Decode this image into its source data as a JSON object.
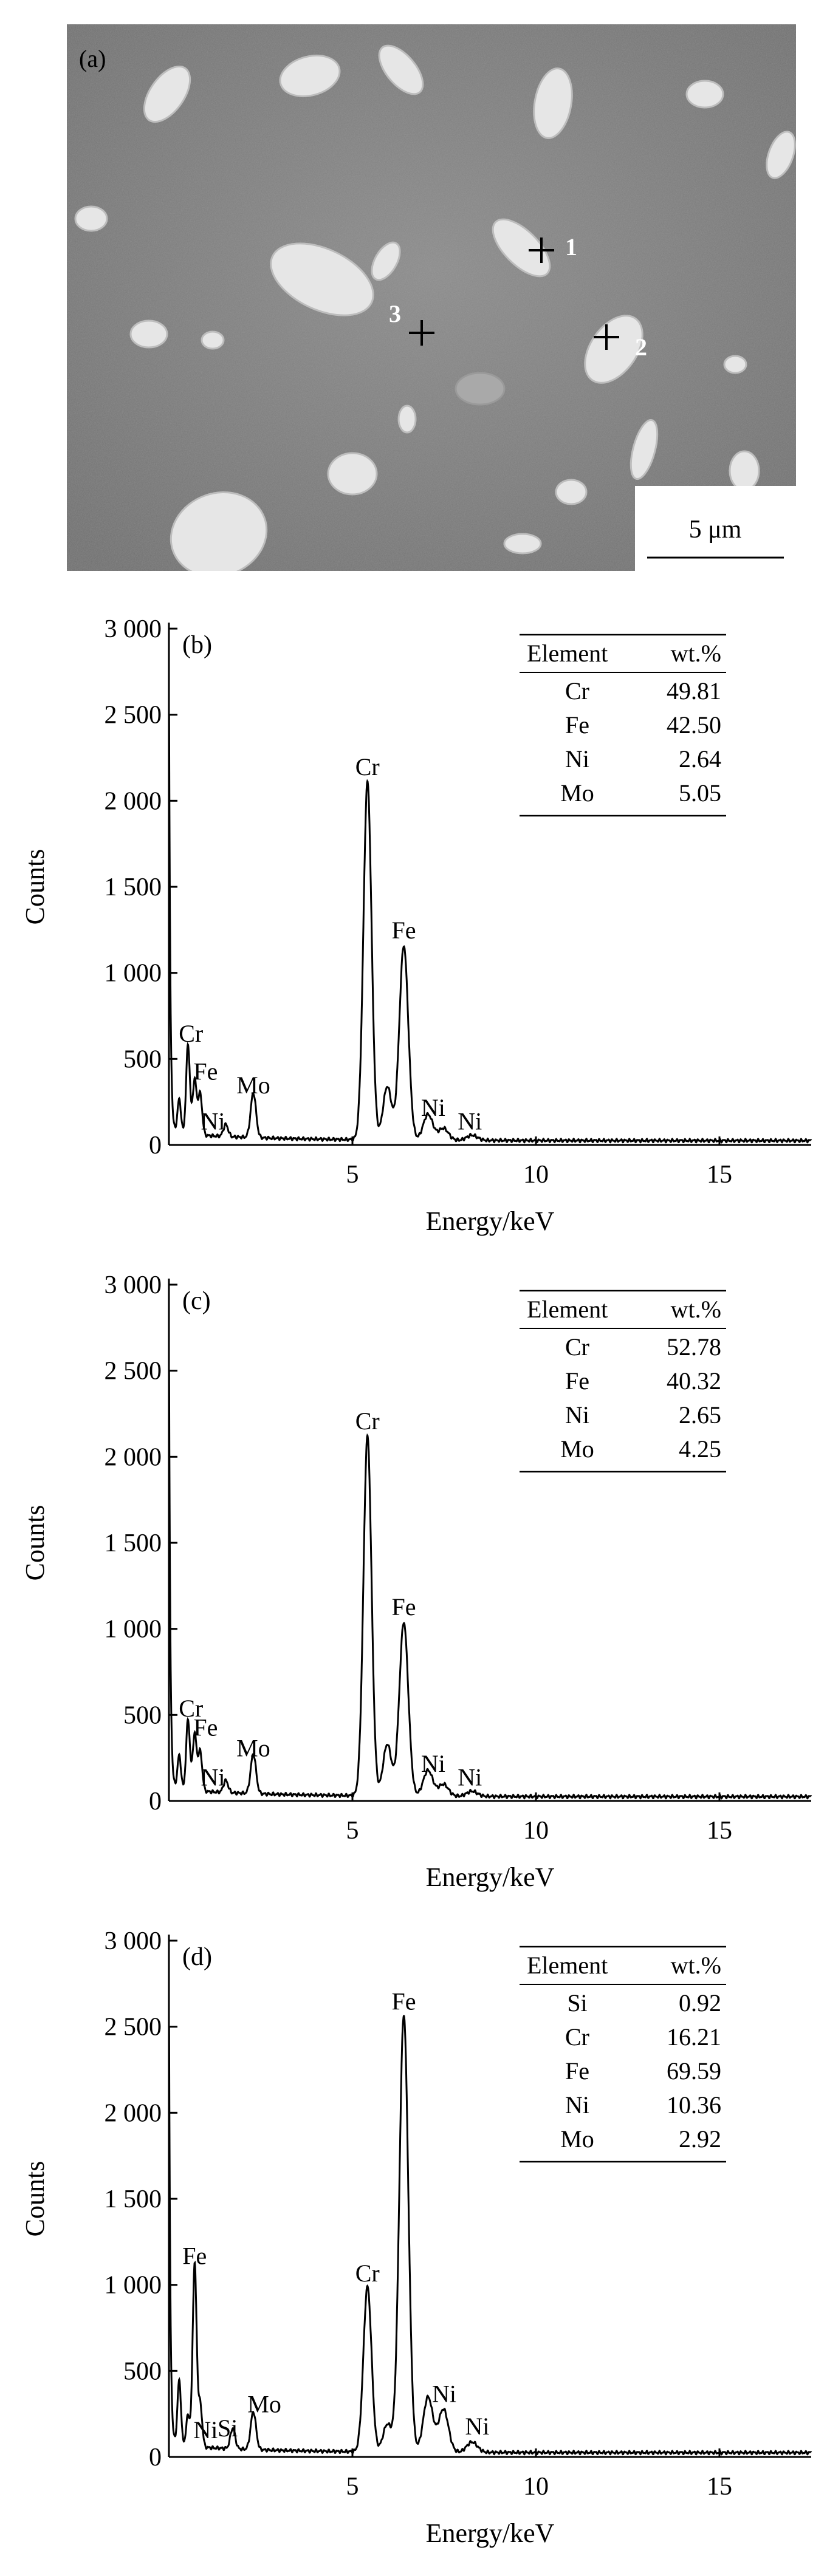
{
  "sem_panel": {
    "label": "(a)",
    "scale_bar": "5 μm",
    "points": [
      "1",
      "2",
      "3"
    ]
  },
  "chart_data": [
    {
      "type": "line",
      "panel": "(b)",
      "xlabel": "Energy/keV",
      "ylabel": "Counts",
      "xlim": [
        0,
        17.5
      ],
      "ylim": [
        0,
        3000
      ],
      "xticks": [
        5,
        10,
        15
      ],
      "yticks": [
        0,
        500,
        1000,
        1500,
        2000,
        2500,
        3000
      ],
      "ytick_labels": [
        "0",
        "500",
        "1 000",
        "1 500",
        "2 000",
        "2 500",
        "3 000"
      ],
      "series": [
        {
          "peaks": [
            [
              0.28,
              200
            ],
            [
              0.52,
              520
            ],
            [
              0.7,
              320
            ],
            [
              0.85,
              240
            ],
            [
              1.55,
              70
            ],
            [
              2.3,
              260
            ],
            [
              5.41,
              2080
            ],
            [
              5.95,
              310
            ],
            [
              6.4,
              1130
            ],
            [
              7.06,
              150
            ],
            [
              7.48,
              70
            ],
            [
              8.26,
              30
            ]
          ]
        }
      ],
      "annotations": [
        {
          "text": "Cr",
          "x": 0.6,
          "y": 600
        },
        {
          "text": "Fe",
          "x": 1.0,
          "y": 380
        },
        {
          "text": "Ni",
          "x": 1.2,
          "y": 90
        },
        {
          "text": "Mo",
          "x": 2.3,
          "y": 300
        },
        {
          "text": "Cr",
          "x": 5.41,
          "y": 2150
        },
        {
          "text": "Fe",
          "x": 6.4,
          "y": 1200
        },
        {
          "text": "Ni",
          "x": 7.2,
          "y": 170
        },
        {
          "text": "Ni",
          "x": 8.2,
          "y": 90
        }
      ],
      "table": {
        "headers": [
          "Element",
          "wt.%"
        ],
        "rows": [
          [
            "Cr",
            "49.81"
          ],
          [
            "Fe",
            "42.50"
          ],
          [
            "Ni",
            "2.64"
          ],
          [
            "Mo",
            "5.05"
          ]
        ]
      }
    },
    {
      "type": "line",
      "panel": "(c)",
      "xlabel": "Energy/keV",
      "ylabel": "Counts",
      "xlim": [
        0,
        17.5
      ],
      "ylim": [
        0,
        3000
      ],
      "xticks": [
        5,
        10,
        15
      ],
      "yticks": [
        0,
        500,
        1000,
        1500,
        2000,
        2500,
        3000
      ],
      "ytick_labels": [
        "0",
        "500",
        "1 000",
        "1 500",
        "2 000",
        "2 500",
        "3 000"
      ],
      "series": [
        {
          "peaks": [
            [
              0.28,
              200
            ],
            [
              0.52,
              410
            ],
            [
              0.7,
              330
            ],
            [
              0.85,
              230
            ],
            [
              1.55,
              70
            ],
            [
              2.3,
              230
            ],
            [
              5.41,
              2090
            ],
            [
              5.95,
              300
            ],
            [
              6.4,
              1010
            ],
            [
              7.06,
              150
            ],
            [
              7.48,
              70
            ],
            [
              8.26,
              30
            ]
          ]
        }
      ],
      "annotations": [
        {
          "text": "Cr",
          "x": 0.6,
          "y": 490
        },
        {
          "text": "Fe",
          "x": 1.0,
          "y": 380
        },
        {
          "text": "Ni",
          "x": 1.2,
          "y": 90
        },
        {
          "text": "Mo",
          "x": 2.3,
          "y": 260
        },
        {
          "text": "Cr",
          "x": 5.41,
          "y": 2160
        },
        {
          "text": "Fe",
          "x": 6.4,
          "y": 1080
        },
        {
          "text": "Ni",
          "x": 7.2,
          "y": 170
        },
        {
          "text": "Ni",
          "x": 8.2,
          "y": 90
        }
      ],
      "table": {
        "headers": [
          "Element",
          "wt.%"
        ],
        "rows": [
          [
            "Cr",
            "52.78"
          ],
          [
            "Fe",
            "40.32"
          ],
          [
            "Ni",
            "2.65"
          ],
          [
            "Mo",
            "4.25"
          ]
        ]
      }
    },
    {
      "type": "line",
      "panel": "(d)",
      "xlabel": "Energy/keV",
      "ylabel": "Counts",
      "xlim": [
        0,
        17.5
      ],
      "ylim": [
        0,
        3000
      ],
      "xticks": [
        5,
        10,
        15
      ],
      "yticks": [
        0,
        500,
        1000,
        1500,
        2000,
        2500,
        3000
      ],
      "ytick_labels": [
        "0",
        "500",
        "1 000",
        "1 500",
        "2 000",
        "2 500",
        "3 000"
      ],
      "series": [
        {
          "peaks": [
            [
              0.28,
              380
            ],
            [
              0.52,
              180
            ],
            [
              0.7,
              1060
            ],
            [
              0.85,
              250
            ],
            [
              1.74,
              120
            ],
            [
              2.3,
              220
            ],
            [
              5.41,
              960
            ],
            [
              5.95,
              160
            ],
            [
              6.4,
              2540
            ],
            [
              7.06,
              320
            ],
            [
              7.48,
              250
            ],
            [
              8.26,
              60
            ]
          ]
        }
      ],
      "annotations": [
        {
          "text": "Fe",
          "x": 0.7,
          "y": 1120
        },
        {
          "text": "Ni",
          "x": 1.0,
          "y": 110
        },
        {
          "text": "Si",
          "x": 1.6,
          "y": 120
        },
        {
          "text": "Mo",
          "x": 2.6,
          "y": 260
        },
        {
          "text": "Cr",
          "x": 5.41,
          "y": 1020
        },
        {
          "text": "Fe",
          "x": 6.4,
          "y": 2600
        },
        {
          "text": "Ni",
          "x": 7.5,
          "y": 320
        },
        {
          "text": "Ni",
          "x": 8.4,
          "y": 130
        }
      ],
      "table": {
        "headers": [
          "Element",
          "wt.%"
        ],
        "rows": [
          [
            "Si",
            "0.92"
          ],
          [
            "Cr",
            "16.21"
          ],
          [
            "Fe",
            "69.59"
          ],
          [
            "Ni",
            "10.36"
          ],
          [
            "Mo",
            "2.92"
          ]
        ]
      }
    }
  ]
}
